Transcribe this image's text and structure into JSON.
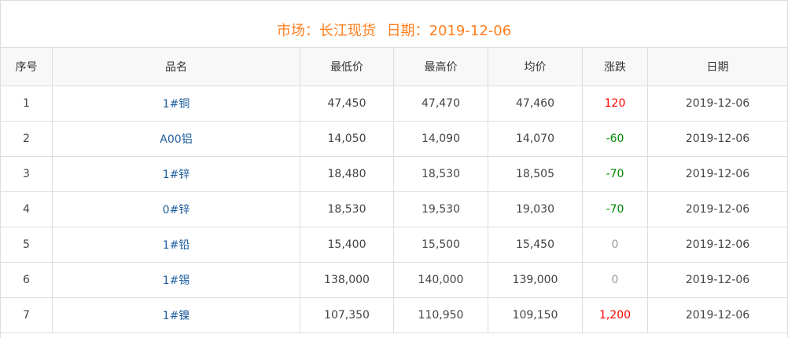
{
  "title": {
    "market_label": "市场：长江现货",
    "date_label": "日期：2019-12-06"
  },
  "colors": {
    "title": "#ff7f1f",
    "up": "#ff0000",
    "down": "#008800",
    "flat": "#999999",
    "name_link": "#1f5f9f"
  },
  "columns": [
    "序号",
    "品名",
    "最低价",
    "最高价",
    "均价",
    "涨跌",
    "日期"
  ],
  "rows": [
    {
      "no": "1",
      "name": "1#铜",
      "low": "47,450",
      "high": "47,470",
      "avg": "47,460",
      "change": "120",
      "trend": "up",
      "date": "2019-12-06"
    },
    {
      "no": "2",
      "name": "A00铝",
      "low": "14,050",
      "high": "14,090",
      "avg": "14,070",
      "change": "-60",
      "trend": "down",
      "date": "2019-12-06"
    },
    {
      "no": "3",
      "name": "1#锌",
      "low": "18,480",
      "high": "18,530",
      "avg": "18,505",
      "change": "-70",
      "trend": "down",
      "date": "2019-12-06"
    },
    {
      "no": "4",
      "name": "0#锌",
      "low": "18,530",
      "high": "19,530",
      "avg": "19,030",
      "change": "-70",
      "trend": "down",
      "date": "2019-12-06"
    },
    {
      "no": "5",
      "name": "1#铅",
      "low": "15,400",
      "high": "15,500",
      "avg": "15,450",
      "change": "0",
      "trend": "flat",
      "date": "2019-12-06"
    },
    {
      "no": "6",
      "name": "1#锡",
      "low": "138,000",
      "high": "140,000",
      "avg": "139,000",
      "change": "0",
      "trend": "flat",
      "date": "2019-12-06"
    },
    {
      "no": "7",
      "name": "1#镍",
      "low": "107,350",
      "high": "110,950",
      "avg": "109,150",
      "change": "1,200",
      "trend": "up",
      "date": "2019-12-06"
    }
  ]
}
